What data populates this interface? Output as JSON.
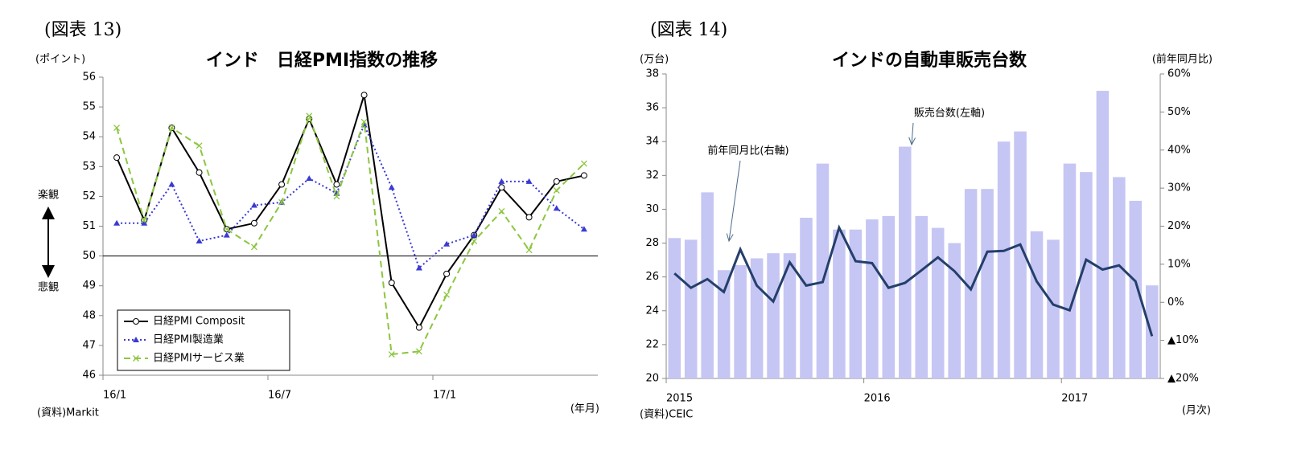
{
  "chart_data": [
    {
      "type": "line",
      "caption": "(図表 13)",
      "title": "インド　日経PMI指数の推移",
      "y_unit": "(ポイント)",
      "x_unit": "(年月)",
      "source": "(資料)Markit",
      "annotations": [
        "楽観",
        "悲観"
      ],
      "categories": [
        "16/1",
        null,
        null,
        null,
        null,
        null,
        "16/7",
        null,
        null,
        null,
        null,
        null,
        "17/1",
        null,
        null,
        null,
        null,
        null
      ],
      "series": [
        {
          "name": "日経PMI Composit",
          "color": "#000000",
          "marker": "circle",
          "dash": "solid",
          "values": [
            53.3,
            51.2,
            54.3,
            52.8,
            50.9,
            51.1,
            52.4,
            54.6,
            52.4,
            55.4,
            49.1,
            47.6,
            49.4,
            50.7,
            52.3,
            51.3,
            52.5,
            52.7
          ]
        },
        {
          "name": "日経PMI製造業",
          "color": "#3a3ad4",
          "marker": "triangle",
          "dash": "dotted",
          "values": [
            51.1,
            51.1,
            52.4,
            50.5,
            50.7,
            51.7,
            51.8,
            52.6,
            52.1,
            54.4,
            52.3,
            49.6,
            50.4,
            50.7,
            52.5,
            52.5,
            51.6,
            50.9
          ]
        },
        {
          "name": "日経PMIサービス業",
          "color": "#8cc63f",
          "marker": "x",
          "dash": "dashed",
          "values": [
            54.3,
            51.2,
            54.3,
            53.7,
            50.9,
            50.3,
            51.8,
            54.7,
            52.0,
            54.5,
            46.7,
            46.8,
            48.7,
            50.5,
            51.5,
            50.2,
            52.2,
            53.1
          ]
        }
      ],
      "ylim": [
        46,
        56
      ],
      "yticks": [
        46,
        47,
        48,
        49,
        50,
        51,
        52,
        53,
        54,
        55,
        56
      ],
      "reference_line": 50,
      "legend": "lower left"
    },
    {
      "type": "bar",
      "caption": "(図表 14)",
      "title": "インドの自動車販売台数",
      "y_unit": "(万台)",
      "y2_unit": "(前年同月比)",
      "x_unit": "(月次)",
      "source": "(資料)CEIC",
      "categories": [
        "2015",
        null,
        null,
        null,
        null,
        null,
        null,
        null,
        null,
        null,
        null,
        null,
        "2016",
        null,
        null,
        null,
        null,
        null,
        null,
        null,
        null,
        null,
        null,
        null,
        "2017",
        null,
        null,
        null,
        null,
        null
      ],
      "series": [
        {
          "name": "販売台数(左軸)",
          "type": "bar",
          "color": "#c6c6f4",
          "values": [
            28.3,
            28.2,
            31.0,
            26.4,
            26.7,
            27.1,
            27.4,
            27.4,
            29.5,
            32.7,
            28.8,
            28.8,
            29.4,
            29.6,
            33.7,
            29.6,
            28.9,
            28.0,
            31.2,
            31.2,
            34.0,
            34.6,
            28.7,
            28.2,
            32.7,
            32.2,
            37.0,
            31.9,
            30.5,
            25.5
          ]
        },
        {
          "name": "前年同月比(右軸)",
          "type": "line",
          "axis": "y2",
          "color": "#243f6b",
          "values": [
            7.6,
            3.8,
            6.1,
            2.7,
            13.9,
            4.4,
            0.2,
            10.5,
            4.4,
            5.3,
            19.6,
            10.8,
            10.3,
            3.8,
            5.1,
            8.4,
            11.8,
            8.2,
            3.4,
            13.3,
            13.5,
            15.2,
            5.5,
            -0.6,
            -2.1,
            11.2,
            8.6,
            9.7,
            5.5,
            -8.9
          ]
        }
      ],
      "ylim": [
        20,
        38
      ],
      "yticks": [
        20,
        22,
        24,
        26,
        28,
        30,
        32,
        34,
        36,
        38
      ],
      "y2lim": [
        -20,
        60
      ],
      "y2ticks": [
        {
          "value": -20,
          "label": "▲20%"
        },
        {
          "value": -10,
          "label": "▲10%"
        },
        {
          "value": 0,
          "label": "0%"
        },
        {
          "value": 10,
          "label": "10%"
        },
        {
          "value": 20,
          "label": "20%"
        },
        {
          "value": 30,
          "label": "30%"
        },
        {
          "value": 40,
          "label": "40%"
        },
        {
          "value": 50,
          "label": "50%"
        },
        {
          "value": 60,
          "label": "60%"
        }
      ]
    }
  ]
}
